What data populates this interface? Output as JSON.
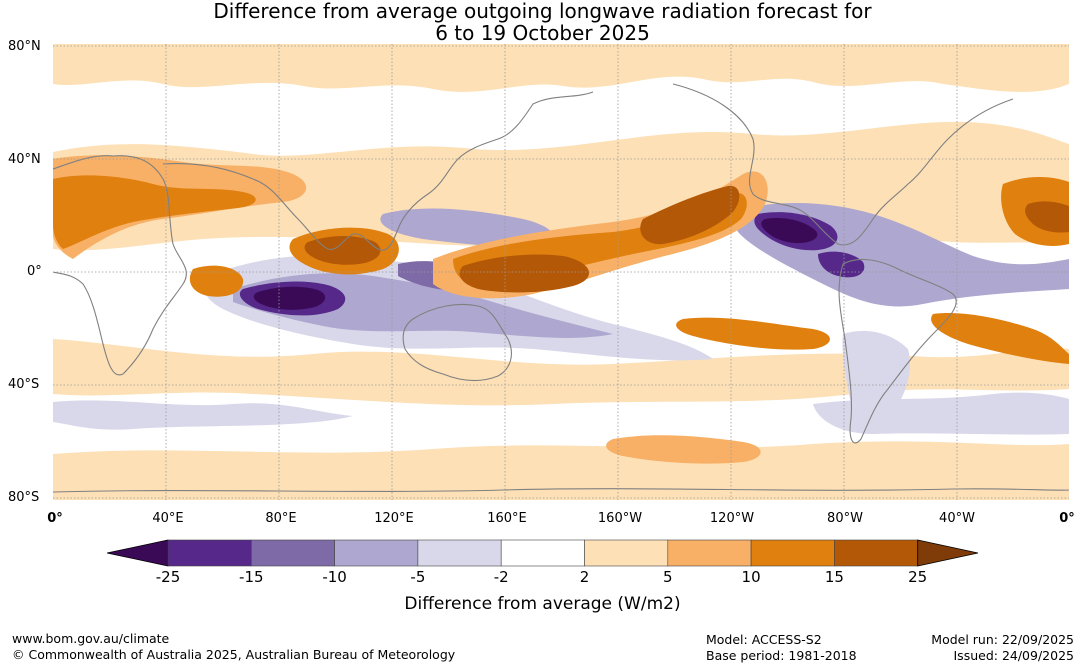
{
  "title": {
    "line1": "Difference from average outgoing longwave radiation forecast for",
    "line2": "6 to 19 October 2025"
  },
  "lat_labels": [
    "80°N",
    "40°N",
    "0°",
    "40°S",
    "80°S"
  ],
  "lon_labels": [
    "0°",
    "40°E",
    "80°E",
    "120°E",
    "160°E",
    "160°W",
    "120°W",
    "80°W",
    "40°W",
    "0°"
  ],
  "colorbar": {
    "ticks": [
      "-25",
      "-15",
      "-10",
      "-5",
      "-2",
      "2",
      "5",
      "10",
      "15",
      "25"
    ],
    "colors": [
      "#3b0a57",
      "#55288a",
      "#7f6aa8",
      "#aea7cf",
      "#d9d8ea",
      "#ffffff",
      "#fde0b6",
      "#f8b066",
      "#e0800f",
      "#b35806",
      "#7f3b08"
    ],
    "label": "Difference from average (W/m2)"
  },
  "footer": {
    "url": "www.bom.gov.au/climate",
    "copyright": "© Commonwealth of Australia 2025, Australian Bureau of Meteorology",
    "model": "Model: ACCESS-S2",
    "base_period": "Base period: 1981-2018",
    "model_run": "Model run: 22/09/2025",
    "issued": "Issued: 24/09/2025"
  }
}
